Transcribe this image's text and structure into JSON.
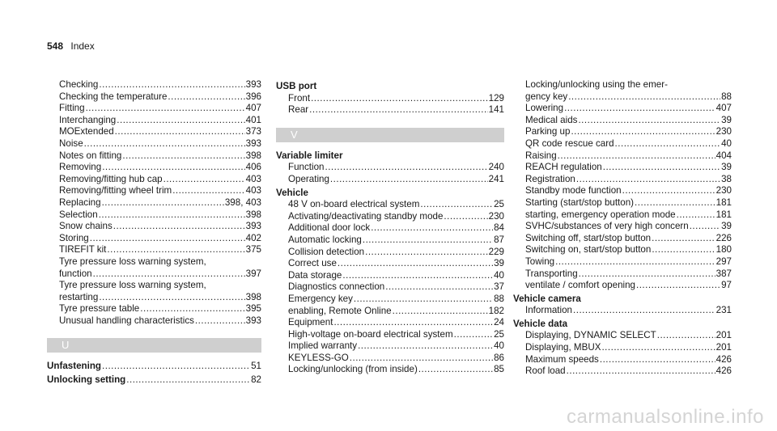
{
  "header": {
    "page_number": "548",
    "title": "Index"
  },
  "col1": {
    "items": [
      {
        "text": "Checking",
        "page": "393"
      },
      {
        "text": "Checking the temperature",
        "page": "396"
      },
      {
        "text": "Fitting",
        "page": "407"
      },
      {
        "text": "Interchanging",
        "page": "401"
      },
      {
        "text": "MOExtended",
        "page": "373"
      },
      {
        "text": "Noise",
        "page": "393"
      },
      {
        "text": "Notes on fitting",
        "page": "398"
      },
      {
        "text": "Removing",
        "page": "406"
      },
      {
        "text": "Removing/fitting hub cap",
        "page": "403"
      },
      {
        "text": "Removing/fitting wheel trim",
        "page": "403"
      },
      {
        "text": "Replacing",
        "page": "398, 403"
      },
      {
        "text": "Selection",
        "page": "398"
      },
      {
        "text": "Snow chains",
        "page": "393"
      },
      {
        "text": "Storing",
        "page": "402"
      },
      {
        "text": "TIREFIT kit",
        "page": "375"
      }
    ],
    "tpms_function": {
      "line1": "Tyre pressure loss warning system,",
      "line2": "function",
      "page": "397"
    },
    "tpms_restarting": {
      "line1": "Tyre pressure loss warning system,",
      "line2": "restarting",
      "page": "398"
    },
    "items_after": [
      {
        "text": "Tyre pressure table",
        "page": "395"
      },
      {
        "text": "Unusual handling characteristics",
        "page": "393"
      }
    ],
    "section_u": "U",
    "u_entries": [
      {
        "text": "Unfastening",
        "page": "51"
      },
      {
        "text": "Unlocking setting",
        "page": "82"
      }
    ]
  },
  "col2": {
    "usb_heading": "USB port",
    "usb_items": [
      {
        "text": "Front",
        "page": "129"
      },
      {
        "text": "Rear",
        "page": "141"
      }
    ],
    "section_v": "V",
    "vl_heading": "Variable limiter",
    "vl_items": [
      {
        "text": "Function",
        "page": "240"
      },
      {
        "text": "Operating",
        "page": "241"
      }
    ],
    "vehicle_heading": "Vehicle",
    "vehicle_items": [
      {
        "text": "48 V on-board electrical system",
        "page": "25"
      },
      {
        "text": "Activating/deactivating standby mode",
        "page": "230"
      },
      {
        "text": "Additional door lock",
        "page": "84"
      },
      {
        "text": "Automatic locking",
        "page": "87"
      },
      {
        "text": "Collision detection",
        "page": "229"
      },
      {
        "text": "Correct use",
        "page": "39"
      },
      {
        "text": "Data storage",
        "page": "40"
      },
      {
        "text": "Diagnostics connection",
        "page": "37"
      },
      {
        "text": "Emergency key",
        "page": "88"
      },
      {
        "text": "enabling, Remote Online",
        "page": "182"
      },
      {
        "text": "Equipment",
        "page": "24"
      },
      {
        "text": "High-voltage on-board electrical system",
        "page": "25"
      },
      {
        "text": "Implied warranty",
        "page": "40"
      },
      {
        "text": "KEYLESS-GO",
        "page": "86"
      },
      {
        "text": "Locking/unlocking (from inside)",
        "page": "85"
      }
    ]
  },
  "col3": {
    "locking_emer": {
      "line1": "Locking/unlocking using the emer-",
      "line2": "gency key",
      "page": "88"
    },
    "items": [
      {
        "text": "Lowering",
        "page": "407"
      },
      {
        "text": "Medical aids",
        "page": "39"
      },
      {
        "text": "Parking up",
        "page": "230"
      },
      {
        "text": "QR code rescue card",
        "page": "40"
      },
      {
        "text": "Raising",
        "page": "404"
      },
      {
        "text": "REACH regulation",
        "page": "39"
      },
      {
        "text": "Registration",
        "page": "38"
      },
      {
        "text": "Standby mode function",
        "page": "230"
      },
      {
        "text": "Starting (start/stop button)",
        "page": "181"
      },
      {
        "text": "starting, emergency operation mode",
        "page": "181"
      },
      {
        "text": "SVHC/substances of very high concern",
        "page": "39"
      },
      {
        "text": "Switching off, start/stop button",
        "page": "226"
      },
      {
        "text": "Switching on, start/stop button",
        "page": "180"
      },
      {
        "text": "Towing",
        "page": "297"
      },
      {
        "text": "Transporting",
        "page": "387"
      },
      {
        "text": "ventilate / comfort opening",
        "page": "97"
      }
    ],
    "camera_heading": "Vehicle camera",
    "camera_items": [
      {
        "text": "Information",
        "page": "231"
      }
    ],
    "data_heading": "Vehicle data",
    "data_items": [
      {
        "text": "Displaying, DYNAMIC SELECT",
        "page": "201"
      },
      {
        "text": "Displaying, MBUX",
        "page": "201"
      },
      {
        "text": "Maximum speeds",
        "page": "426"
      },
      {
        "text": "Roof load",
        "page": "426"
      }
    ]
  },
  "watermark": "carmanualsonline.info"
}
